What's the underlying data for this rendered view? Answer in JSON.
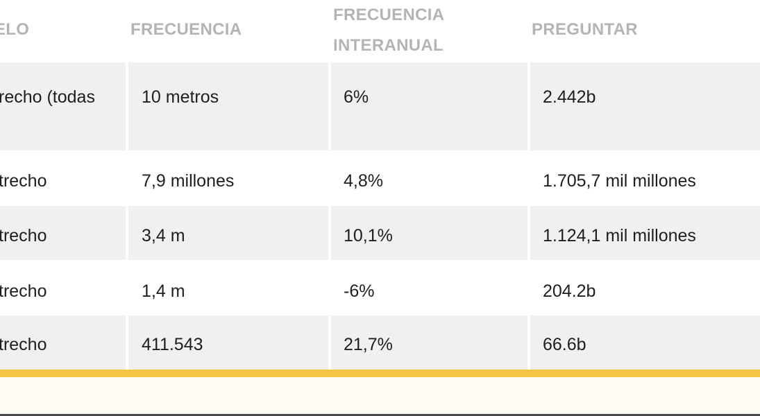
{
  "table": {
    "headers": [
      "ELO",
      "FRECUENCIA",
      "FRECUENCIA\nINTERANUAL",
      "PREGUNTAR"
    ],
    "rows": [
      [
        "recho (todas",
        "10 metros",
        "6%",
        "2.442b"
      ],
      [
        "trecho",
        "7,9 millones",
        "4,8%",
        "1.705,7 mil millones"
      ],
      [
        "trecho",
        "3,4 m",
        "10,1%",
        "1.124,1 mil millones"
      ],
      [
        "trecho",
        "1,4 m",
        "-6%",
        "204.2b"
      ],
      [
        "trecho",
        "411.543",
        "21,7%",
        "66.6b"
      ]
    ]
  },
  "colors": {
    "header_text": "#b4b4b4",
    "row_alt": "#f0f0f0",
    "accent_bar": "#f4c542",
    "body_text": "#1e1e1e"
  }
}
